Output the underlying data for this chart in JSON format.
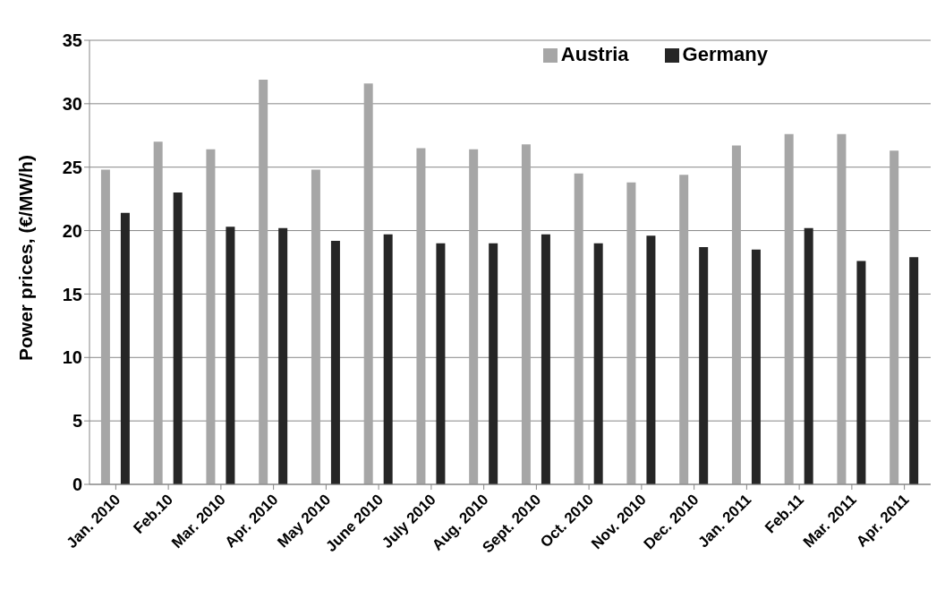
{
  "chart_data": {
    "type": "bar",
    "ylabel": "Power prices, (€/MW/h)",
    "categories": [
      "Jan. 2010",
      "Feb.10",
      "Mar. 2010",
      "Apr. 2010",
      "May 2010",
      "June 2010",
      "July 2010",
      "Aug. 2010",
      "Sept. 2010",
      "Oct. 2010",
      "Nov. 2010",
      "Dec. 2010",
      "Jan. 2011",
      "Feb.11",
      "Mar. 2011",
      "Apr. 2011"
    ],
    "series": [
      {
        "name": "Austria",
        "color": "#a6a6a6",
        "values": [
          24.8,
          27.0,
          26.4,
          31.9,
          24.8,
          31.6,
          26.5,
          26.4,
          26.8,
          24.5,
          23.8,
          24.4,
          26.7,
          27.6,
          27.6,
          26.3
        ]
      },
      {
        "name": "Germany",
        "color": "#262626",
        "values": [
          21.4,
          23.0,
          20.3,
          20.2,
          19.2,
          19.7,
          19.0,
          19.0,
          19.7,
          19.0,
          19.6,
          18.7,
          18.5,
          20.2,
          17.6,
          17.9
        ]
      }
    ],
    "ylim": [
      0,
      35
    ],
    "yticks": [
      0,
      5,
      10,
      15,
      20,
      25,
      30,
      35
    ],
    "grid": "y",
    "legend": "top right"
  }
}
